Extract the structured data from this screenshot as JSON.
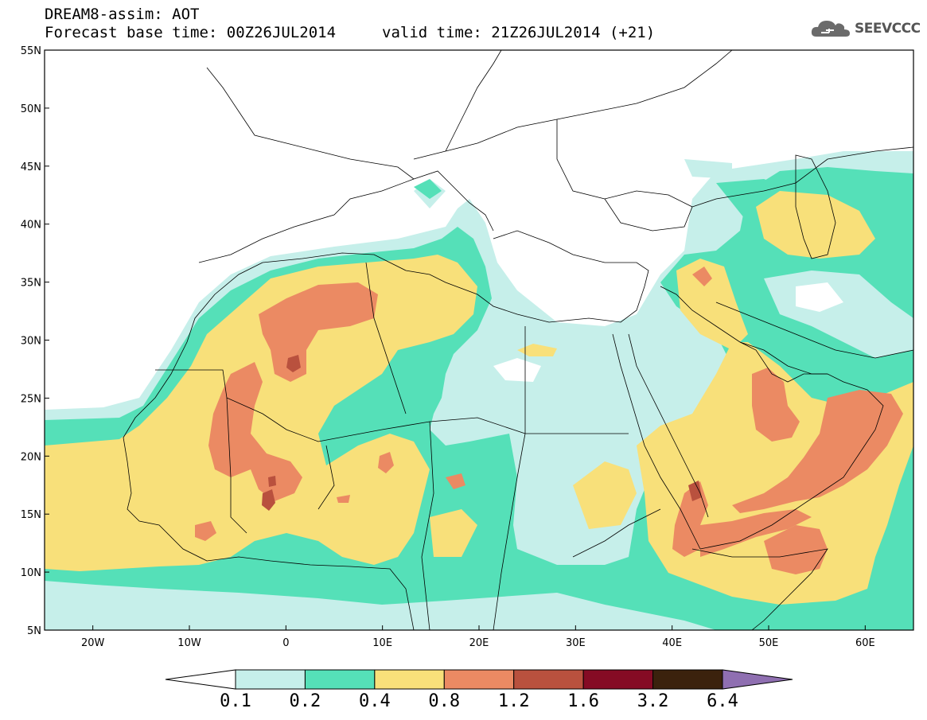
{
  "header": {
    "model_line": "DREAM8-assim: AOT",
    "base_time": "Forecast base time: 00Z26JUL2014",
    "valid_time": "valid time: 21Z26JUL2014 (+21)"
  },
  "logo": {
    "text": "SEEVCCC",
    "icon": "cloud-icon"
  },
  "map": {
    "lat_labels": [
      "55N",
      "50N",
      "45N",
      "40N",
      "35N",
      "30N",
      "25N",
      "20N",
      "15N",
      "10N",
      "5N"
    ],
    "lon_labels": [
      "20W",
      "10W",
      "0",
      "10E",
      "20E",
      "30E",
      "40E",
      "50E",
      "60E"
    ],
    "lat_range": [
      5,
      55
    ],
    "lon_range": [
      -25,
      65
    ]
  },
  "colorbar": {
    "labels": [
      "0.1",
      "0.2",
      "0.4",
      "0.8",
      "1.2",
      "1.6",
      "3.2",
      "6.4"
    ],
    "colors": [
      "#ffffff",
      "#c6efea",
      "#55e0b8",
      "#f8e07a",
      "#eb8a63",
      "#b9513e",
      "#850b24",
      "#3b220d",
      "#8f6fb1"
    ]
  },
  "colors": {
    "level1": "#c6efea",
    "level2": "#55e0b8",
    "level3": "#f8e07a",
    "level4": "#eb8a63",
    "level5": "#b9513e",
    "level6": "#850b24",
    "level7": "#3b220d"
  }
}
